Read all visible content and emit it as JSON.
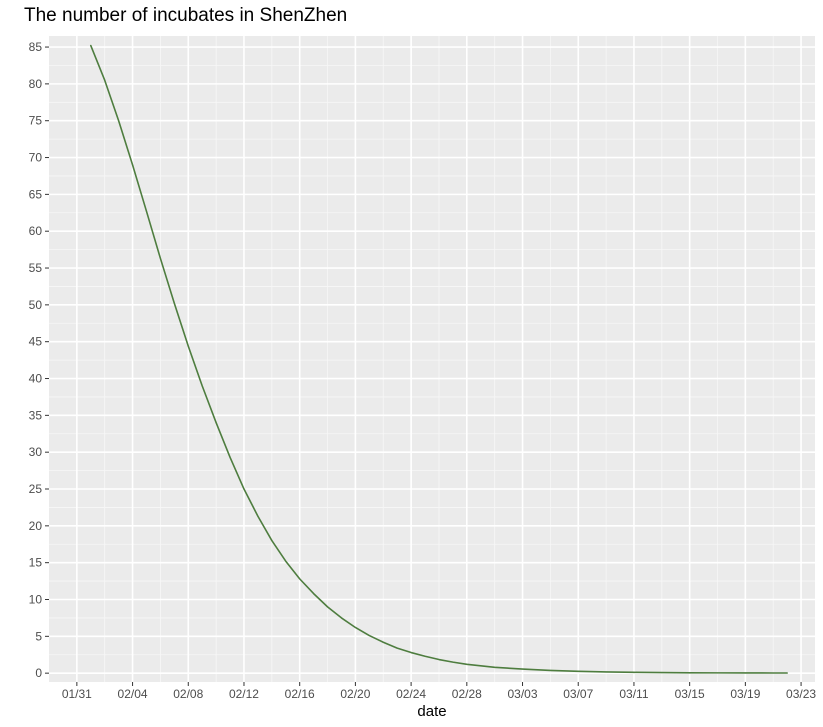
{
  "chart_data": {
    "type": "line",
    "title": "The number of incubates in ShenZhen",
    "xlabel": "date",
    "ylabel": "",
    "year": 2020,
    "x_tick_labels": [
      "01/31",
      "02/04",
      "02/08",
      "02/12",
      "02/16",
      "02/20",
      "02/24",
      "02/28",
      "03/03",
      "03/07",
      "03/11",
      "03/15",
      "03/19",
      "03/23"
    ],
    "y_ticks": [
      0,
      5,
      10,
      15,
      20,
      25,
      30,
      35,
      40,
      45,
      50,
      55,
      60,
      65,
      70,
      75,
      80,
      85
    ],
    "xlim": [
      "2020-01-29",
      "2020-03-24"
    ],
    "ylim": [
      -1.2,
      86.5
    ],
    "grid": true,
    "series": [
      {
        "color": "#4e7d3f",
        "points": [
          [
            "2020-02-01",
            85.2
          ],
          [
            "2020-02-02",
            80.5
          ],
          [
            "2020-02-03",
            75.0
          ],
          [
            "2020-02-04",
            69.0
          ],
          [
            "2020-02-05",
            62.7
          ],
          [
            "2020-02-06",
            56.3
          ],
          [
            "2020-02-07",
            50.2
          ],
          [
            "2020-02-08",
            44.4
          ],
          [
            "2020-02-09",
            39.0
          ],
          [
            "2020-02-10",
            34.0
          ],
          [
            "2020-02-11",
            29.3
          ],
          [
            "2020-02-12",
            25.0
          ],
          [
            "2020-02-13",
            21.3
          ],
          [
            "2020-02-14",
            18.0
          ],
          [
            "2020-02-15",
            15.2
          ],
          [
            "2020-02-16",
            12.8
          ],
          [
            "2020-02-17",
            10.8
          ],
          [
            "2020-02-18",
            9.0
          ],
          [
            "2020-02-19",
            7.5
          ],
          [
            "2020-02-20",
            6.2
          ],
          [
            "2020-02-21",
            5.1
          ],
          [
            "2020-02-22",
            4.2
          ],
          [
            "2020-02-23",
            3.4
          ],
          [
            "2020-02-24",
            2.8
          ],
          [
            "2020-02-25",
            2.3
          ],
          [
            "2020-02-26",
            1.85
          ],
          [
            "2020-02-27",
            1.5
          ],
          [
            "2020-02-28",
            1.2
          ],
          [
            "2020-03-01",
            0.8
          ],
          [
            "2020-03-03",
            0.55
          ],
          [
            "2020-03-05",
            0.37
          ],
          [
            "2020-03-07",
            0.25
          ],
          [
            "2020-03-09",
            0.17
          ],
          [
            "2020-03-11",
            0.11
          ],
          [
            "2020-03-13",
            0.08
          ],
          [
            "2020-03-15",
            0.05
          ],
          [
            "2020-03-17",
            0.04
          ],
          [
            "2020-03-19",
            0.03
          ],
          [
            "2020-03-21",
            0.02
          ],
          [
            "2020-03-22",
            0.02
          ]
        ]
      }
    ]
  }
}
